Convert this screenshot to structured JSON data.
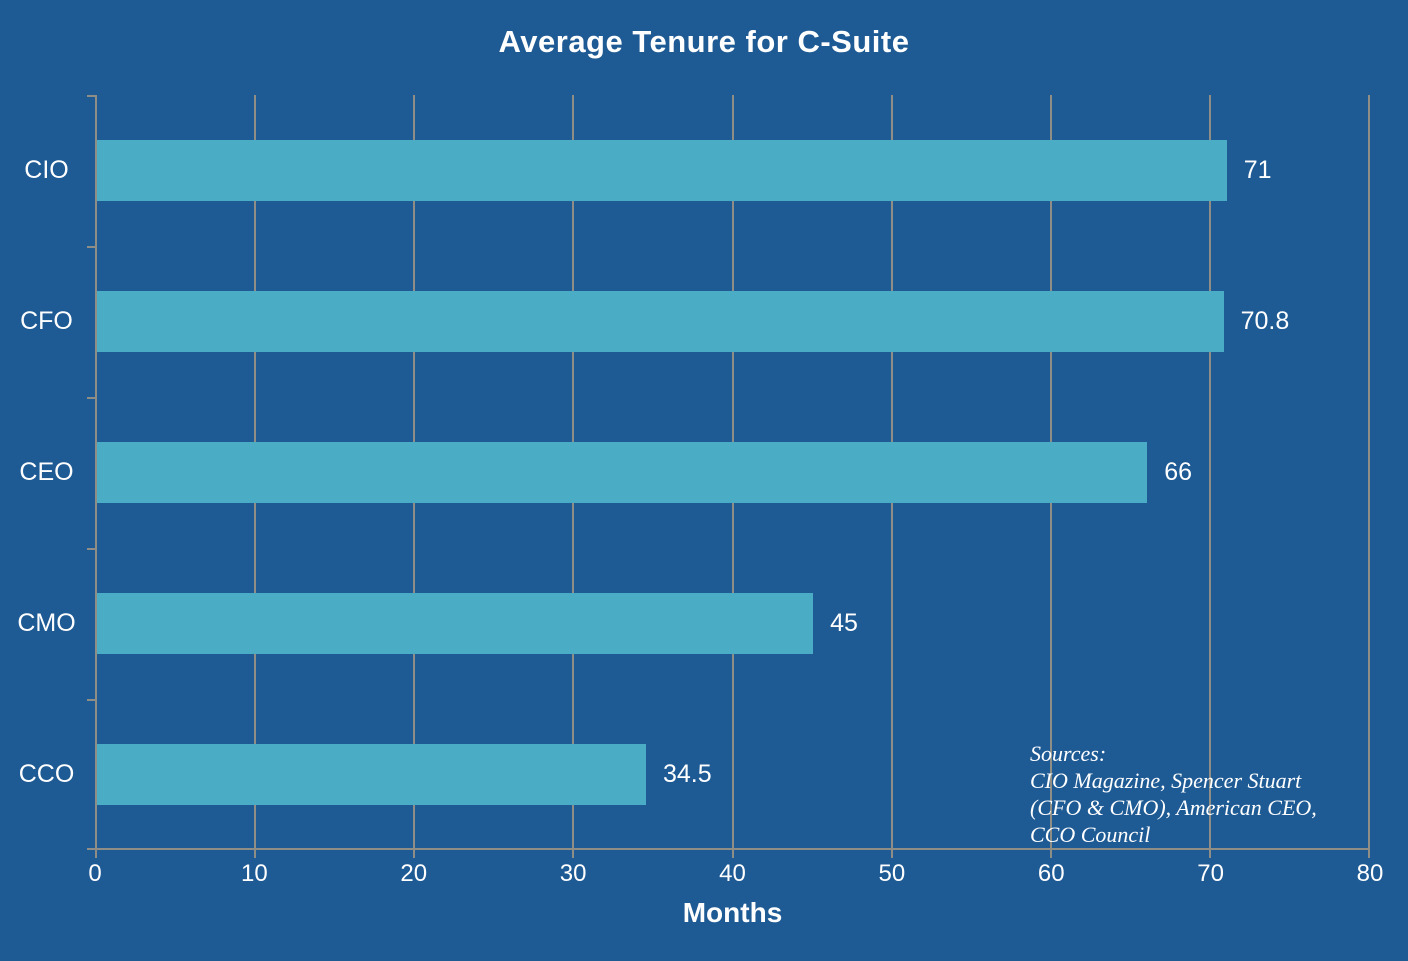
{
  "chart_data": {
    "type": "bar",
    "orientation": "horizontal",
    "title": "Average Tenure for C-Suite",
    "categories": [
      "CIO",
      "CFO",
      "CEO",
      "CMO",
      "CCO"
    ],
    "values": [
      71,
      70.8,
      66,
      45,
      34.5
    ],
    "value_labels": [
      "71",
      "70.8",
      "66",
      "45",
      "34.5"
    ],
    "xlabel": "Months",
    "xlim": [
      0,
      80
    ],
    "x_ticks": [
      0,
      10,
      20,
      30,
      40,
      50,
      60,
      70,
      80
    ],
    "grid": "vertical-gridlines-behind-bars",
    "legend": "none",
    "annotation": {
      "lines": [
        "Sources:",
        "CIO Magazine, Spencer Stuart",
        "(CFO & CMO), American CEO,",
        "CCO Council"
      ]
    },
    "colors": {
      "background": "#1E5A94",
      "bar": "#4BACC6",
      "grid": "#8E8E86",
      "text": "#FFFFFF"
    }
  }
}
